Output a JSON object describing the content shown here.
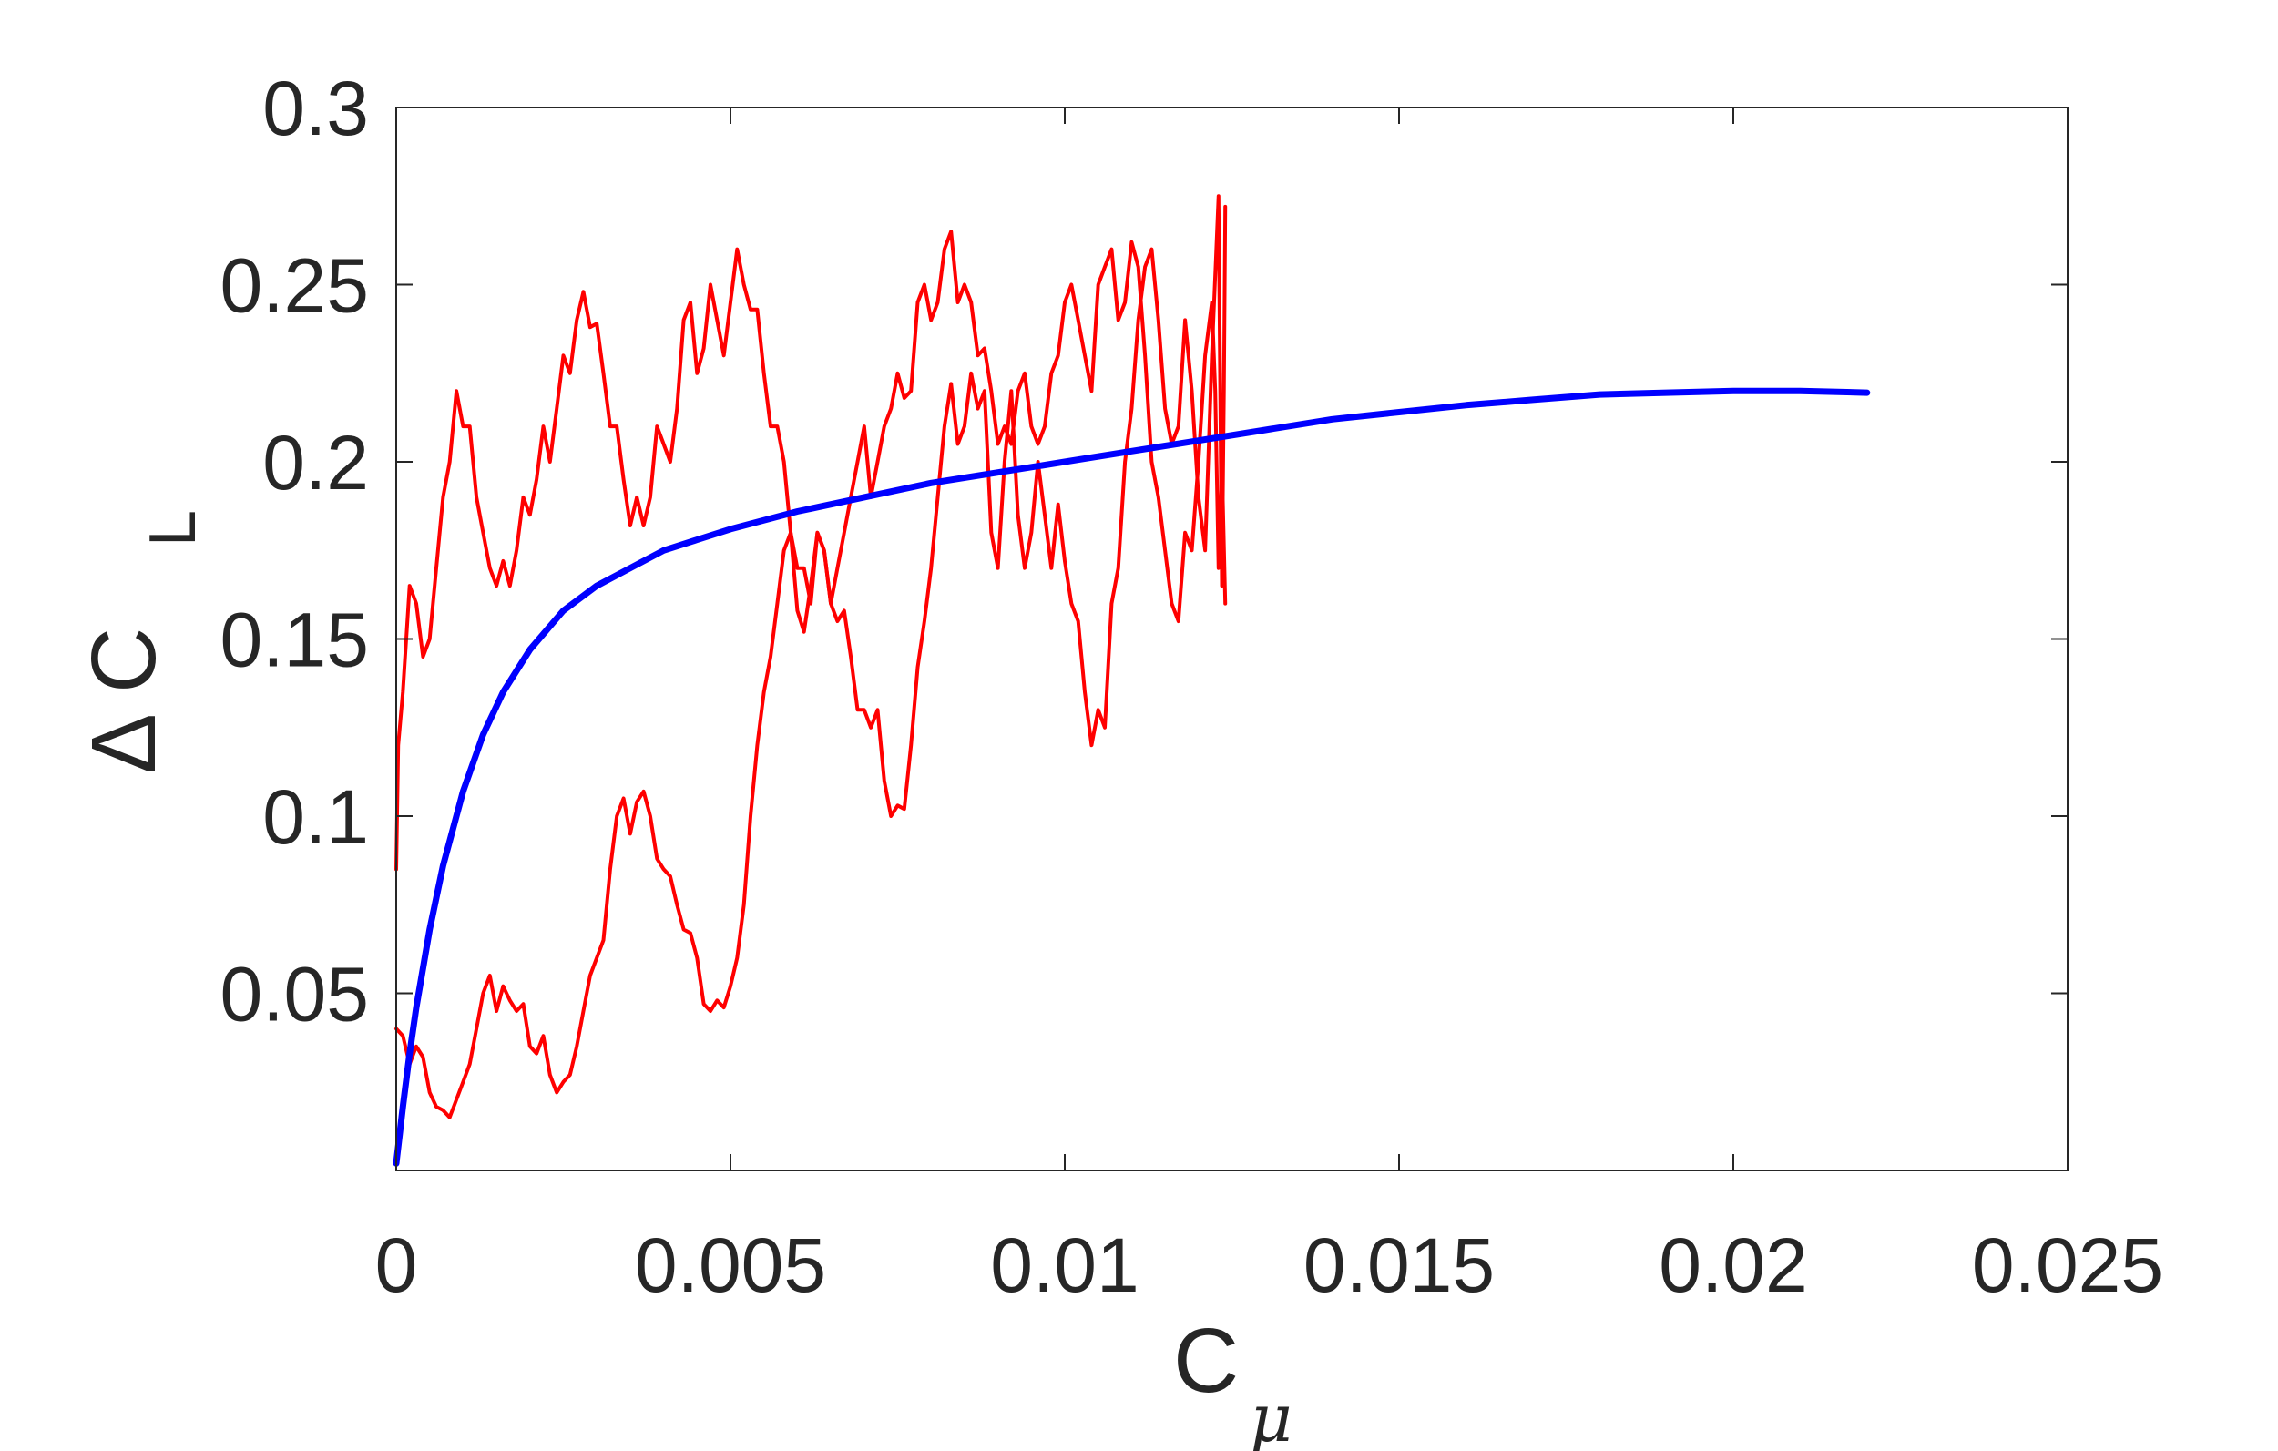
{
  "chart_data": {
    "type": "line",
    "xlabel": {
      "main": "C",
      "sub": "μ"
    },
    "ylabel": {
      "main": "Δ C",
      "sub": "L"
    },
    "xlim": [
      0,
      0.025
    ],
    "ylim": [
      0,
      0.3
    ],
    "x_ticks": [
      "0",
      "0.005",
      "0.01",
      "0.015",
      "0.02",
      "0.025"
    ],
    "y_ticks": [
      "0.05",
      "0.1",
      "0.15",
      "0.2",
      "0.25",
      "0.3"
    ],
    "grid": false,
    "series": [
      {
        "color": "#ff0000",
        "points": [
          [
            0.0,
            0.085
          ],
          [
            3e-05,
            0.12
          ],
          [
            0.0001,
            0.135
          ],
          [
            0.0002,
            0.165
          ],
          [
            0.0003,
            0.16
          ],
          [
            0.0004,
            0.145
          ],
          [
            0.0005,
            0.15
          ],
          [
            0.0006,
            0.17
          ],
          [
            0.0007,
            0.19
          ],
          [
            0.0008,
            0.2
          ],
          [
            0.0009,
            0.22
          ],
          [
            0.001,
            0.21
          ],
          [
            0.0011,
            0.21
          ],
          [
            0.0012,
            0.19
          ],
          [
            0.0013,
            0.18
          ],
          [
            0.0014,
            0.17
          ],
          [
            0.0015,
            0.165
          ],
          [
            0.0016,
            0.172
          ],
          [
            0.0017,
            0.165
          ],
          [
            0.0018,
            0.175
          ],
          [
            0.0019,
            0.19
          ],
          [
            0.002,
            0.185
          ],
          [
            0.0021,
            0.195
          ],
          [
            0.0022,
            0.21
          ],
          [
            0.0023,
            0.2
          ],
          [
            0.0024,
            0.215
          ],
          [
            0.0025,
            0.23
          ],
          [
            0.0026,
            0.225
          ],
          [
            0.0027,
            0.24
          ],
          [
            0.0028,
            0.248
          ],
          [
            0.0029,
            0.238
          ],
          [
            0.003,
            0.239
          ],
          [
            0.0031,
            0.225
          ],
          [
            0.0032,
            0.21
          ],
          [
            0.0033,
            0.21
          ],
          [
            0.0034,
            0.195
          ],
          [
            0.0035,
            0.182
          ],
          [
            0.0036,
            0.19
          ],
          [
            0.0037,
            0.182
          ],
          [
            0.0038,
            0.19
          ],
          [
            0.0039,
            0.21
          ],
          [
            0.004,
            0.205
          ],
          [
            0.0041,
            0.2
          ],
          [
            0.0042,
            0.215
          ],
          [
            0.0043,
            0.24
          ],
          [
            0.0044,
            0.245
          ],
          [
            0.0045,
            0.225
          ],
          [
            0.0046,
            0.232
          ],
          [
            0.0047,
            0.25
          ],
          [
            0.0048,
            0.24
          ],
          [
            0.0049,
            0.23
          ],
          [
            0.005,
            0.245
          ],
          [
            0.0051,
            0.26
          ],
          [
            0.0052,
            0.25
          ],
          [
            0.0053,
            0.243
          ],
          [
            0.0054,
            0.243
          ],
          [
            0.0055,
            0.225
          ],
          [
            0.0056,
            0.21
          ],
          [
            0.0057,
            0.21
          ],
          [
            0.0058,
            0.2
          ],
          [
            0.0059,
            0.18
          ],
          [
            0.006,
            0.158
          ],
          [
            0.0061,
            0.152
          ],
          [
            0.0062,
            0.165
          ],
          [
            0.0063,
            0.18
          ],
          [
            0.0064,
            0.175
          ],
          [
            0.0065,
            0.16
          ],
          [
            0.0066,
            0.155
          ],
          [
            0.0067,
            0.158
          ],
          [
            0.0068,
            0.145
          ],
          [
            0.0069,
            0.13
          ],
          [
            0.007,
            0.13
          ],
          [
            0.0071,
            0.125
          ],
          [
            0.0072,
            0.13
          ],
          [
            0.0073,
            0.11
          ],
          [
            0.0074,
            0.1
          ],
          [
            0.0075,
            0.103
          ],
          [
            0.0076,
            0.102
          ],
          [
            0.0077,
            0.12
          ],
          [
            0.0078,
            0.142
          ],
          [
            0.0079,
            0.155
          ],
          [
            0.008,
            0.17
          ],
          [
            0.0081,
            0.19
          ],
          [
            0.0082,
            0.21
          ],
          [
            0.0083,
            0.222
          ],
          [
            0.0084,
            0.205
          ],
          [
            0.0085,
            0.21
          ],
          [
            0.0086,
            0.225
          ],
          [
            0.0087,
            0.215
          ],
          [
            0.0088,
            0.22
          ],
          [
            0.0089,
            0.18
          ],
          [
            0.009,
            0.17
          ],
          [
            0.0091,
            0.2
          ],
          [
            0.0092,
            0.22
          ],
          [
            0.0093,
            0.185
          ],
          [
            0.0094,
            0.17
          ],
          [
            0.0095,
            0.18
          ],
          [
            0.0096,
            0.2
          ],
          [
            0.0097,
            0.185
          ],
          [
            0.0098,
            0.17
          ],
          [
            0.0099,
            0.188
          ],
          [
            0.01,
            0.172
          ],
          [
            0.0101,
            0.16
          ],
          [
            0.0102,
            0.155
          ],
          [
            0.0103,
            0.135
          ],
          [
            0.0104,
            0.12
          ],
          [
            0.0105,
            0.13
          ],
          [
            0.0106,
            0.125
          ],
          [
            0.0107,
            0.16
          ],
          [
            0.0108,
            0.17
          ],
          [
            0.0109,
            0.2
          ],
          [
            0.011,
            0.215
          ],
          [
            0.0111,
            0.24
          ],
          [
            0.0112,
            0.255
          ],
          [
            0.0113,
            0.26
          ],
          [
            0.0114,
            0.24
          ],
          [
            0.0115,
            0.215
          ],
          [
            0.0116,
            0.205
          ],
          [
            0.0117,
            0.21
          ],
          [
            0.0118,
            0.24
          ],
          [
            0.0119,
            0.22
          ],
          [
            0.012,
            0.19
          ],
          [
            0.0121,
            0.175
          ],
          [
            0.0122,
            0.23
          ],
          [
            0.0123,
            0.275
          ],
          [
            0.01235,
            0.165
          ],
          [
            0.01238,
            0.22
          ],
          [
            0.0124,
            0.272
          ]
        ]
      },
      {
        "color": "#ff0000",
        "points": [
          [
            0.0,
            0.04
          ],
          [
            0.0001,
            0.038
          ],
          [
            0.0002,
            0.03
          ],
          [
            0.0003,
            0.035
          ],
          [
            0.0004,
            0.032
          ],
          [
            0.0005,
            0.022
          ],
          [
            0.0006,
            0.018
          ],
          [
            0.0007,
            0.017
          ],
          [
            0.0008,
            0.015
          ],
          [
            0.0009,
            0.02
          ],
          [
            0.001,
            0.025
          ],
          [
            0.0011,
            0.03
          ],
          [
            0.0012,
            0.04
          ],
          [
            0.0013,
            0.05
          ],
          [
            0.0014,
            0.055
          ],
          [
            0.0015,
            0.045
          ],
          [
            0.0016,
            0.052
          ],
          [
            0.0017,
            0.048
          ],
          [
            0.0018,
            0.045
          ],
          [
            0.0019,
            0.047
          ],
          [
            0.002,
            0.035
          ],
          [
            0.0021,
            0.033
          ],
          [
            0.0022,
            0.038
          ],
          [
            0.0023,
            0.027
          ],
          [
            0.0024,
            0.022
          ],
          [
            0.0025,
            0.025
          ],
          [
            0.0026,
            0.027
          ],
          [
            0.0027,
            0.035
          ],
          [
            0.0028,
            0.045
          ],
          [
            0.0029,
            0.055
          ],
          [
            0.003,
            0.06
          ],
          [
            0.0031,
            0.065
          ],
          [
            0.0032,
            0.085
          ],
          [
            0.0033,
            0.1
          ],
          [
            0.0034,
            0.105
          ],
          [
            0.0035,
            0.095
          ],
          [
            0.0036,
            0.104
          ],
          [
            0.0037,
            0.107
          ],
          [
            0.0038,
            0.1
          ],
          [
            0.0039,
            0.088
          ],
          [
            0.004,
            0.085
          ],
          [
            0.0041,
            0.083
          ],
          [
            0.0042,
            0.075
          ],
          [
            0.0043,
            0.068
          ],
          [
            0.0044,
            0.067
          ],
          [
            0.0045,
            0.06
          ],
          [
            0.0046,
            0.047
          ],
          [
            0.0047,
            0.045
          ],
          [
            0.0048,
            0.048
          ],
          [
            0.0049,
            0.046
          ],
          [
            0.005,
            0.052
          ],
          [
            0.0051,
            0.06
          ],
          [
            0.0052,
            0.075
          ],
          [
            0.0053,
            0.1
          ],
          [
            0.0054,
            0.12
          ],
          [
            0.0055,
            0.135
          ],
          [
            0.0056,
            0.145
          ],
          [
            0.0057,
            0.16
          ],
          [
            0.0058,
            0.175
          ],
          [
            0.0059,
            0.18
          ],
          [
            0.006,
            0.17
          ],
          [
            0.0061,
            0.17
          ],
          [
            0.0062,
            0.16
          ],
          [
            0.0063,
            0.18
          ],
          [
            0.0064,
            0.175
          ],
          [
            0.0065,
            0.16
          ],
          [
            0.0066,
            0.17
          ],
          [
            0.0067,
            0.18
          ],
          [
            0.0068,
            0.19
          ],
          [
            0.0069,
            0.2
          ],
          [
            0.007,
            0.21
          ],
          [
            0.0071,
            0.19
          ],
          [
            0.0072,
            0.2
          ],
          [
            0.0073,
            0.21
          ],
          [
            0.0074,
            0.215
          ],
          [
            0.0075,
            0.225
          ],
          [
            0.0076,
            0.218
          ],
          [
            0.0077,
            0.22
          ],
          [
            0.0078,
            0.245
          ],
          [
            0.0079,
            0.25
          ],
          [
            0.008,
            0.24
          ],
          [
            0.0081,
            0.245
          ],
          [
            0.0082,
            0.26
          ],
          [
            0.0083,
            0.265
          ],
          [
            0.0084,
            0.245
          ],
          [
            0.0085,
            0.25
          ],
          [
            0.0086,
            0.245
          ],
          [
            0.0087,
            0.23
          ],
          [
            0.0088,
            0.232
          ],
          [
            0.0089,
            0.22
          ],
          [
            0.009,
            0.205
          ],
          [
            0.0091,
            0.21
          ],
          [
            0.0092,
            0.205
          ],
          [
            0.0093,
            0.22
          ],
          [
            0.0094,
            0.225
          ],
          [
            0.0095,
            0.21
          ],
          [
            0.0096,
            0.205
          ],
          [
            0.0097,
            0.21
          ],
          [
            0.0098,
            0.225
          ],
          [
            0.0099,
            0.23
          ],
          [
            0.01,
            0.245
          ],
          [
            0.0101,
            0.25
          ],
          [
            0.0102,
            0.24
          ],
          [
            0.0103,
            0.23
          ],
          [
            0.0104,
            0.22
          ],
          [
            0.0105,
            0.25
          ],
          [
            0.0106,
            0.255
          ],
          [
            0.0107,
            0.26
          ],
          [
            0.0108,
            0.24
          ],
          [
            0.0109,
            0.245
          ],
          [
            0.011,
            0.262
          ],
          [
            0.0111,
            0.255
          ],
          [
            0.0112,
            0.23
          ],
          [
            0.0113,
            0.2
          ],
          [
            0.0114,
            0.19
          ],
          [
            0.0115,
            0.175
          ],
          [
            0.0116,
            0.16
          ],
          [
            0.0117,
            0.155
          ],
          [
            0.0118,
            0.18
          ],
          [
            0.0119,
            0.175
          ],
          [
            0.012,
            0.2
          ],
          [
            0.0121,
            0.23
          ],
          [
            0.0122,
            0.245
          ],
          [
            0.01225,
            0.22
          ],
          [
            0.0123,
            0.17
          ],
          [
            0.01235,
            0.2
          ],
          [
            0.0124,
            0.16
          ]
        ]
      },
      {
        "color": "#0000ff",
        "points": [
          [
            0.0,
            0.002
          ],
          [
            5e-05,
            0.01
          ],
          [
            0.0001,
            0.018
          ],
          [
            0.0002,
            0.033
          ],
          [
            0.0003,
            0.046
          ],
          [
            0.0005,
            0.068
          ],
          [
            0.0007,
            0.086
          ],
          [
            0.001,
            0.107
          ],
          [
            0.0013,
            0.123
          ],
          [
            0.0016,
            0.135
          ],
          [
            0.002,
            0.147
          ],
          [
            0.0025,
            0.158
          ],
          [
            0.003,
            0.165
          ],
          [
            0.0035,
            0.17
          ],
          [
            0.004,
            0.175
          ],
          [
            0.0045,
            0.178
          ],
          [
            0.005,
            0.181
          ],
          [
            0.006,
            0.186
          ],
          [
            0.007,
            0.19
          ],
          [
            0.008,
            0.194
          ],
          [
            0.009,
            0.197
          ],
          [
            0.01,
            0.2
          ],
          [
            0.011,
            0.203
          ],
          [
            0.012,
            0.206
          ],
          [
            0.013,
            0.209
          ],
          [
            0.014,
            0.212
          ],
          [
            0.015,
            0.214
          ],
          [
            0.016,
            0.216
          ],
          [
            0.017,
            0.2175
          ],
          [
            0.018,
            0.219
          ],
          [
            0.019,
            0.2195
          ],
          [
            0.02,
            0.22
          ],
          [
            0.021,
            0.22
          ],
          [
            0.022,
            0.2195
          ]
        ]
      }
    ]
  }
}
